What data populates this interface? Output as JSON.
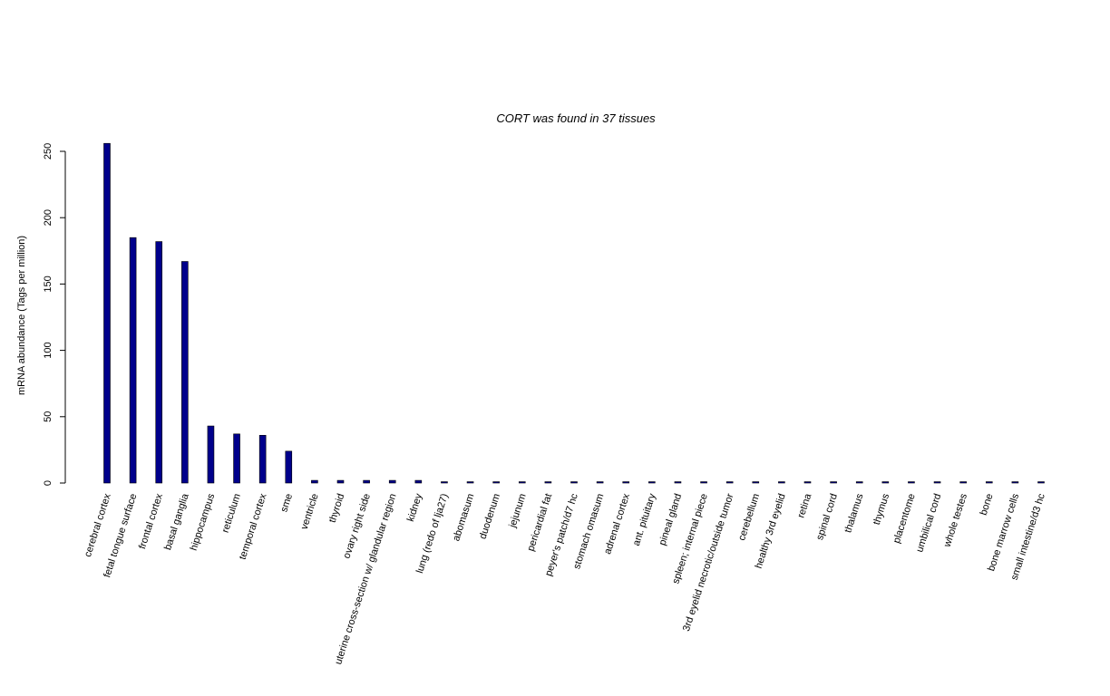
{
  "chart_data": {
    "type": "bar",
    "title": "CORT  was found in  37  tissues",
    "y_label": "mRNA abundance (Tags per million)",
    "categories": [
      "cerebral cortex",
      "fetal tongue surface",
      "frontal cortex",
      "basal ganglia",
      "hippocampus",
      "reticulum",
      "temporal cortex",
      "sme",
      "ventricle",
      "thyroid",
      "ovary right side",
      "uterine cross-section w/ glandular region",
      "kidney",
      "lung (redo of lja27)",
      "abomasum",
      "duodenum",
      "jejunum",
      "pericardial fat",
      "peyer's patch/d7 hc",
      "stomach omasum",
      "adrenal cortex",
      "ant. pituitary",
      "pineal gland",
      "spleen; internal piece",
      "3rd eyelid necrotic/outside tumor",
      "cerebellum",
      "healthy 3rd eyelid",
      "retina",
      "spinal cord",
      "thalamus",
      "thymus",
      "placentome",
      "umbilical cord",
      "whole testes",
      "bone",
      "bone marrow cells",
      "small intestine/d3 hc"
    ],
    "values": [
      256,
      185,
      182,
      167,
      43,
      37,
      36,
      24,
      2,
      2,
      2,
      2,
      2,
      1,
      1,
      1,
      1,
      1,
      1,
      1,
      1,
      1,
      1,
      1,
      1,
      1,
      1,
      1,
      1,
      1,
      1,
      1,
      1,
      1,
      1,
      1,
      1
    ],
    "color": "#00008b",
    "ylim": [
      0,
      250
    ],
    "yticks": [
      0,
      50,
      100,
      150,
      200,
      250
    ]
  }
}
